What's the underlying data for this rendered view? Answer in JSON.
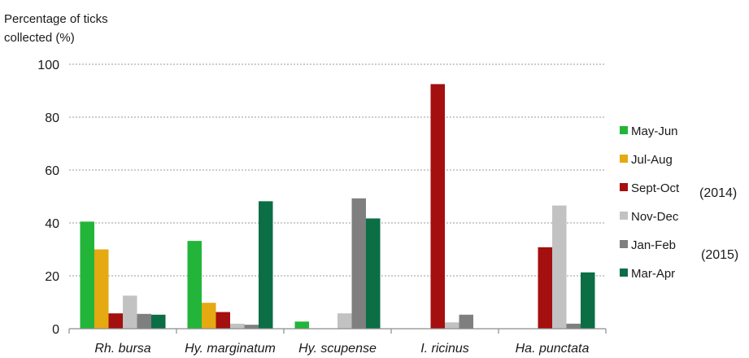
{
  "chart_data": {
    "type": "bar",
    "ylabel_lines": [
      "Percentage of ticks",
      "collected (%)"
    ],
    "xlabel": "",
    "title": "",
    "ylim": [
      0,
      100
    ],
    "yticks": [
      0,
      20,
      40,
      60,
      80,
      100
    ],
    "grid": "horizontal dotted",
    "legend_position": "right",
    "categories": [
      "Rh. bursa",
      "Hy. marginatum",
      "Hy. scupense",
      "I. ricinus",
      "Ha. punctata"
    ],
    "series": [
      {
        "name": "May-Jun",
        "color": "#22b53a",
        "values": [
          40.5,
          33.2,
          2.7,
          0,
          0
        ]
      },
      {
        "name": "Jul-Aug",
        "color": "#e5a912",
        "values": [
          30.0,
          9.8,
          0,
          0,
          0
        ]
      },
      {
        "name": "Sept-Oct",
        "color": "#a40f0f",
        "values": [
          5.8,
          6.3,
          0,
          92.5,
          30.8
        ]
      },
      {
        "name": "Nov-Dec",
        "color": "#c2c2c2",
        "values": [
          12.5,
          1.9,
          5.8,
          2.4,
          46.6
        ]
      },
      {
        "name": "Jan-Feb",
        "color": "#7f7f7f",
        "values": [
          5.6,
          1.5,
          49.3,
          5.3,
          1.9
        ]
      },
      {
        "name": "Mar-Apr",
        "color": "#0b6e45",
        "values": [
          5.3,
          48.2,
          41.7,
          0,
          21.3
        ]
      }
    ],
    "legend_annotations": [
      {
        "text": "(2014)",
        "near_series": "Sept-Oct"
      },
      {
        "text": "(2015)",
        "near_series": "Jan-Feb"
      }
    ]
  }
}
